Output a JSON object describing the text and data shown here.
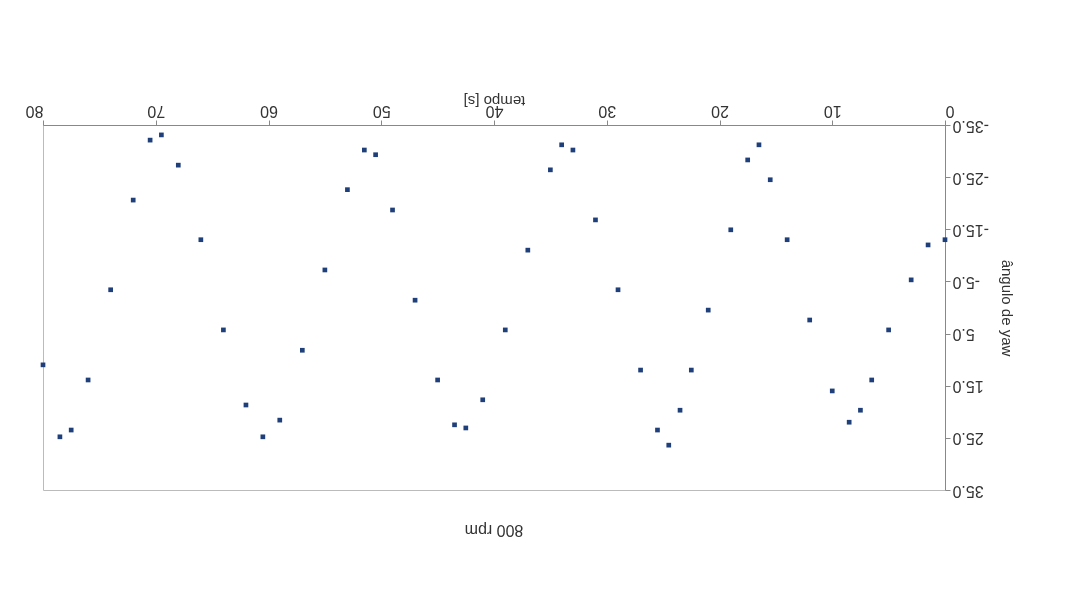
{
  "chart_data": {
    "type": "scatter",
    "title": "800 rpm",
    "xlabel": "tempo [s]",
    "ylabel": "ângulo de yaw",
    "xlim": [
      80,
      0
    ],
    "xticks": [
      0,
      10,
      20,
      30,
      40,
      50,
      60,
      70,
      80
    ],
    "ylim": [
      35,
      -35
    ],
    "yticks": [
      {
        "value": -35,
        "label": "-35.0"
      },
      {
        "value": -25,
        "label": "-25.0"
      },
      {
        "value": -15,
        "label": "-15.0"
      },
      {
        "value": -5,
        "label": "-5.0"
      },
      {
        "value": 5,
        "label": "5.0"
      },
      {
        "value": 15,
        "label": "15.0"
      },
      {
        "value": 25,
        "label": "25.0"
      },
      {
        "value": 35,
        "label": "35.0"
      }
    ],
    "grid": false,
    "marker": "square",
    "x": [
      0,
      1.5,
      3,
      5,
      6.5,
      7.5,
      8.5,
      10,
      12,
      14,
      15.5,
      16.5,
      17.5,
      19,
      21,
      22.5,
      23.5,
      24.5,
      25.5,
      27,
      29,
      31,
      33,
      34,
      35,
      37,
      39,
      41,
      42.5,
      43.5,
      45,
      47,
      49,
      50.5,
      51.5,
      53,
      55,
      57,
      59,
      60.5,
      62,
      64,
      66,
      68,
      69.5,
      70.5,
      72,
      74,
      76,
      77.5,
      78.5,
      80
    ],
    "series": [
      {
        "color": "#1f3f7a",
        "values": [
          -13,
          -12,
          -5.3,
          4.3,
          13.9,
          19.7,
          22,
          16,
          2.4,
          -13,
          -24.5,
          -31.2,
          -28.3,
          -14.9,
          0.5,
          12,
          19.7,
          26.4,
          23.5,
          12,
          -3.4,
          -16.8,
          -30.2,
          -31.2,
          -26.4,
          -11,
          4.3,
          17.7,
          23.1,
          22.5,
          13.9,
          -1.4,
          -18.7,
          -29.3,
          -30.2,
          -22.6,
          -7.2,
          8.2,
          21.6,
          24.8,
          18.7,
          4.3,
          -13,
          -27.3,
          -33.1,
          -32.1,
          -20.6,
          -3.4,
          13.9,
          23.5,
          24.8,
          11
        ]
      }
    ]
  }
}
